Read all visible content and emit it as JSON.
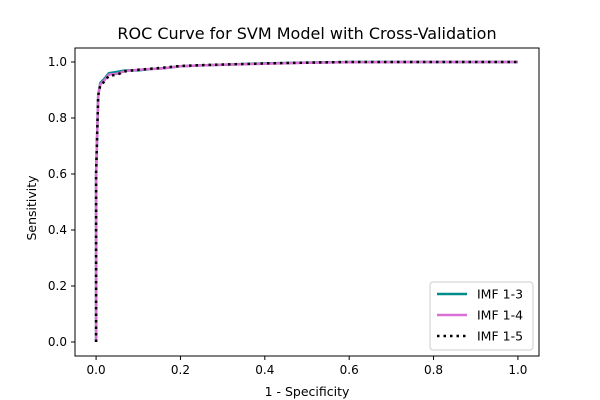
{
  "chart_data": {
    "type": "line",
    "title": "ROC Curve for SVM Model with Cross-Validation",
    "xlabel": "1 - Specificity",
    "ylabel": "Sensitivity",
    "xlim": [
      -0.05,
      1.05
    ],
    "ylim": [
      -0.05,
      1.05
    ],
    "xticks": [
      0.0,
      0.2,
      0.4,
      0.6,
      0.8,
      1.0
    ],
    "yticks": [
      0.0,
      0.2,
      0.4,
      0.6,
      0.8,
      1.0
    ],
    "xtick_labels": [
      "0.0",
      "0.2",
      "0.4",
      "0.6",
      "0.8",
      "1.0"
    ],
    "ytick_labels": [
      "0.0",
      "0.2",
      "0.4",
      "0.6",
      "0.8",
      "1.0"
    ],
    "grid": false,
    "legend_position": "lower-right",
    "series": [
      {
        "name": "IMF 1-3",
        "color": "#008b8b",
        "style": "solid",
        "x": [
          0.0,
          0.0,
          0.005,
          0.01,
          0.02,
          0.03,
          0.05,
          0.07,
          0.1,
          0.13,
          0.16,
          0.2,
          0.25,
          0.3,
          0.35,
          0.4,
          0.5,
          0.6,
          0.8,
          1.0
        ],
        "y": [
          0.0,
          0.6,
          0.88,
          0.925,
          0.94,
          0.96,
          0.965,
          0.97,
          0.97,
          0.975,
          0.978,
          0.985,
          0.988,
          0.99,
          0.993,
          0.995,
          0.998,
          1.0,
          1.0,
          1.0
        ]
      },
      {
        "name": "IMF 1-4",
        "color": "#da70d6",
        "style": "solid",
        "x": [
          0.0,
          0.0,
          0.005,
          0.01,
          0.02,
          0.03,
          0.05,
          0.07,
          0.1,
          0.13,
          0.16,
          0.2,
          0.25,
          0.3,
          0.35,
          0.4,
          0.5,
          0.6,
          0.8,
          1.0
        ],
        "y": [
          0.0,
          0.6,
          0.88,
          0.92,
          0.935,
          0.955,
          0.958,
          0.968,
          0.972,
          0.975,
          0.978,
          0.985,
          0.988,
          0.99,
          0.992,
          0.994,
          0.997,
          0.999,
          1.0,
          1.0
        ]
      },
      {
        "name": "IMF 1-5",
        "color": "#000000",
        "style": "dotted",
        "x": [
          0.0,
          0.0,
          0.005,
          0.01,
          0.02,
          0.03,
          0.05,
          0.07,
          0.1,
          0.13,
          0.16,
          0.2,
          0.25,
          0.3,
          0.35,
          0.4,
          0.5,
          0.6,
          0.8,
          1.0
        ],
        "y": [
          0.0,
          0.6,
          0.88,
          0.918,
          0.93,
          0.95,
          0.955,
          0.967,
          0.972,
          0.976,
          0.98,
          0.986,
          0.989,
          0.991,
          0.993,
          0.995,
          0.998,
          1.0,
          1.0,
          1.0
        ]
      }
    ]
  }
}
